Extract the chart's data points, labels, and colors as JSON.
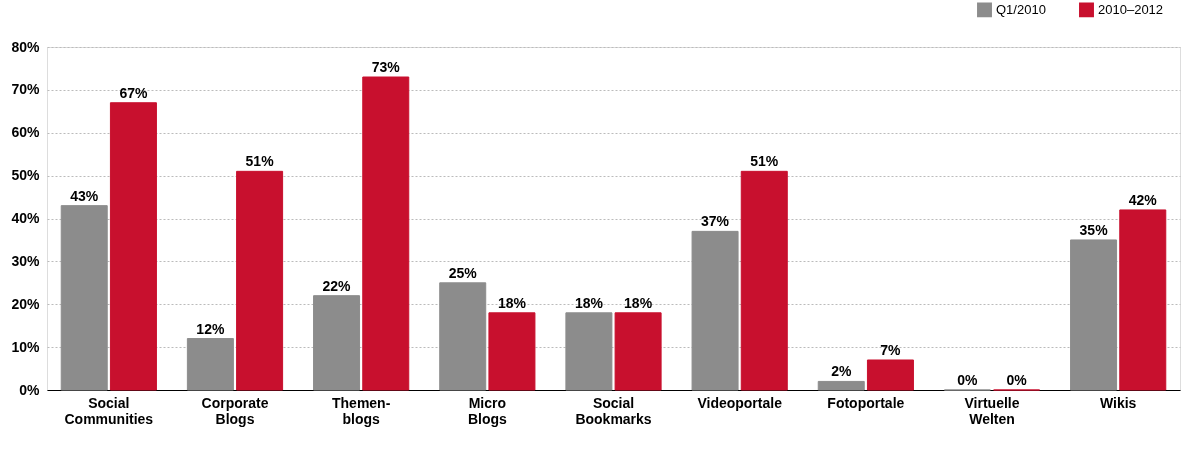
{
  "chart_data": {
    "type": "bar",
    "categories": [
      "Social\nCommunities",
      "Corporate\nBlogs",
      "Themen-\nblogs",
      "Micro\nBlogs",
      "Social\nBookmarks",
      "Videoportale",
      "Fotoportale",
      "Virtuelle\nWelten",
      "Wikis"
    ],
    "series": [
      {
        "name": "Q1/2010",
        "color": "#8c8c8c",
        "values": [
          43,
          12,
          22,
          25,
          18,
          37,
          2,
          0,
          35
        ],
        "value_labels": [
          "43%",
          "12%",
          "22%",
          "25%",
          "18%",
          "37%",
          "2%",
          "0%",
          "35%"
        ]
      },
      {
        "name": "2010–2012",
        "color": "#c8102e",
        "values": [
          67,
          51,
          73,
          18,
          18,
          51,
          7,
          0,
          42
        ],
        "value_labels": [
          "67%",
          "51%",
          "73%",
          "18%",
          "18%",
          "51%",
          "7%",
          "0%",
          "42%"
        ]
      }
    ],
    "ylim": [
      0,
      80
    ],
    "yticks": [
      {
        "value": 0,
        "label": "0%"
      },
      {
        "value": 10,
        "label": "10%"
      },
      {
        "value": 20,
        "label": "20%"
      },
      {
        "value": 30,
        "label": "30%"
      },
      {
        "value": 40,
        "label": "40%"
      },
      {
        "value": 50,
        "label": "50%"
      },
      {
        "value": 60,
        "label": "60%"
      },
      {
        "value": 70,
        "label": "70%"
      },
      {
        "value": 80,
        "label": "80%"
      }
    ],
    "grid": "y",
    "legend": "top right"
  }
}
